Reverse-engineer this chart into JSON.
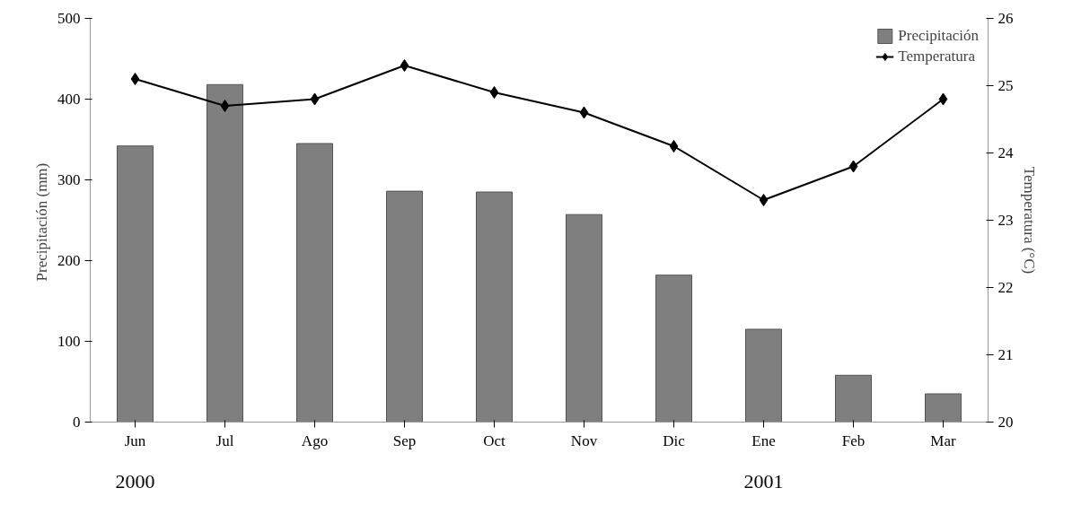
{
  "chart_data": {
    "type": "bar",
    "categories": [
      "Jun",
      "Jul",
      "Ago",
      "Sep",
      "Oct",
      "Nov",
      "Dic",
      "Ene",
      "Feb",
      "Mar"
    ],
    "ylabel": "Precipitación  (mm)",
    "y2label": "Temperatura (°C)",
    "ylim": [
      0,
      500
    ],
    "yticks": [
      0,
      100,
      200,
      300,
      400,
      500
    ],
    "y2lim": [
      20,
      26
    ],
    "y2ticks": [
      20,
      21,
      22,
      23,
      24,
      25,
      26
    ],
    "series": [
      {
        "name": "Precipitación",
        "color": "#7f7f7f",
        "values": [
          342,
          418,
          345,
          286,
          285,
          257,
          182,
          115,
          58,
          35
        ]
      },
      {
        "name": "Temperatura",
        "type": "line",
        "axis": "y2",
        "color": "#000000",
        "marker": "diamond",
        "values": [
          25.1,
          24.7,
          24.8,
          25.3,
          24.9,
          24.6,
          24.1,
          23.3,
          23.8,
          24.8
        ]
      }
    ],
    "annotations": [
      "2000",
      "2001"
    ],
    "legend": "top right",
    "grid": false
  }
}
